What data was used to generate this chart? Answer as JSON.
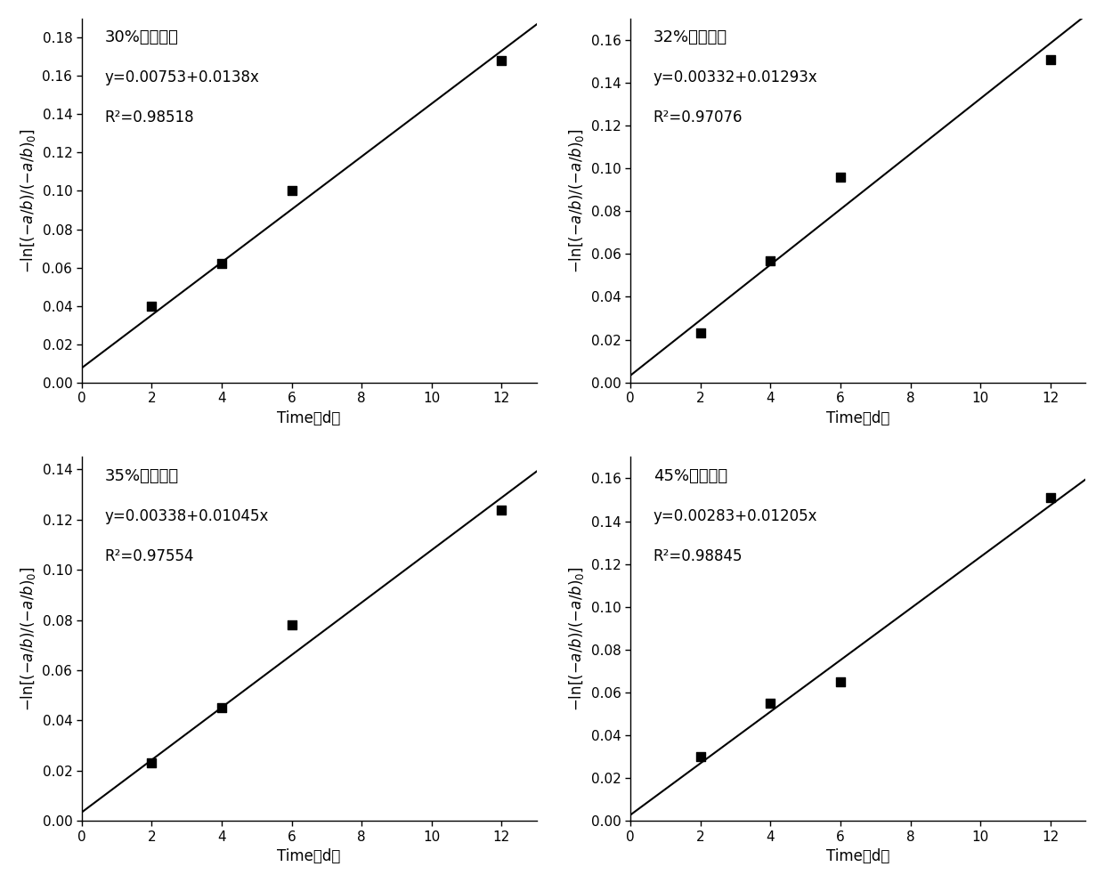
{
  "subplots": [
    {
      "title_cn": "30%水分含量",
      "equation": "y=0.00753+0.0138x",
      "r2": "R²=0.98518",
      "intercept": 0.00753,
      "slope": 0.0138,
      "x_data": [
        2,
        4,
        6,
        12
      ],
      "y_data": [
        0.04,
        0.062,
        0.1,
        0.168
      ],
      "xlim": [
        0,
        13
      ],
      "ylim": [
        0,
        0.19
      ],
      "yticks": [
        0.0,
        0.02,
        0.04,
        0.06,
        0.08,
        0.1,
        0.12,
        0.14,
        0.16,
        0.18
      ],
      "xticks": [
        0,
        2,
        4,
        6,
        8,
        10,
        12
      ]
    },
    {
      "title_cn": "32%水分含量",
      "equation": "y=0.00332+0.01293x",
      "r2": "R²=0.97076",
      "intercept": 0.00332,
      "slope": 0.01293,
      "x_data": [
        2,
        4,
        6,
        12
      ],
      "y_data": [
        0.023,
        0.057,
        0.096,
        0.151
      ],
      "xlim": [
        0,
        13
      ],
      "ylim": [
        0,
        0.17
      ],
      "yticks": [
        0.0,
        0.02,
        0.04,
        0.06,
        0.08,
        0.1,
        0.12,
        0.14,
        0.16
      ],
      "xticks": [
        0,
        2,
        4,
        6,
        8,
        10,
        12
      ]
    },
    {
      "title_cn": "35%水分含量",
      "equation": "y=0.00338+0.01045x",
      "r2": "R²=0.97554",
      "intercept": 0.00338,
      "slope": 0.01045,
      "x_data": [
        2,
        4,
        6,
        12
      ],
      "y_data": [
        0.023,
        0.045,
        0.078,
        0.124
      ],
      "xlim": [
        0,
        13
      ],
      "ylim": [
        0,
        0.145
      ],
      "yticks": [
        0.0,
        0.02,
        0.04,
        0.06,
        0.08,
        0.1,
        0.12,
        0.14
      ],
      "xticks": [
        0,
        2,
        4,
        6,
        8,
        10,
        12
      ]
    },
    {
      "title_cn": "45%水分含量",
      "equation": "y=0.00283+0.01205x",
      "r2": "R²=0.98845",
      "intercept": 0.00283,
      "slope": 0.01205,
      "x_data": [
        2,
        4,
        6,
        12
      ],
      "y_data": [
        0.03,
        0.055,
        0.065,
        0.151
      ],
      "xlim": [
        0,
        13
      ],
      "ylim": [
        0,
        0.17
      ],
      "yticks": [
        0.0,
        0.02,
        0.04,
        0.06,
        0.08,
        0.1,
        0.12,
        0.14,
        0.16
      ],
      "xticks": [
        0,
        2,
        4,
        6,
        8,
        10,
        12
      ]
    }
  ],
  "ylabel": "-ln[(-a/b)/(-a/b)$_0$]",
  "xlabel": "Time（d）",
  "line_color": "#000000",
  "marker_color": "#000000",
  "background_color": "#ffffff",
  "font_size_title": 13,
  "font_size_eq": 12,
  "font_size_axis": 12,
  "font_size_tick": 11
}
